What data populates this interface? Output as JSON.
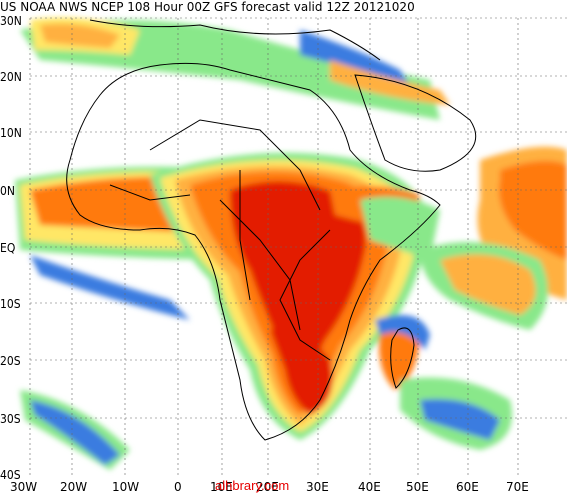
{
  "header": {
    "title": "US NOAA NWS NCEP 108 Hour 00Z GFS forecast valid 12Z 20121020"
  },
  "axes": {
    "lat_labels": [
      "30N",
      "20N",
      "10N",
      "0N",
      "EQ",
      "10S",
      "20S",
      "30S",
      "40S"
    ],
    "lon_labels": [
      "30W",
      "20W",
      "10W",
      "0",
      "10E",
      "20E",
      "30E",
      "40E",
      "50E",
      "60E",
      "70E"
    ]
  },
  "watermark": "alhbrary.com",
  "colors": {
    "land_outline": "#000000",
    "blue": "#3a7be0",
    "light_blue": "#8fd0ff",
    "green": "#89e88a",
    "yellow": "#ffe766",
    "light_orange": "#ffb040",
    "orange": "#ff7a10",
    "red": "#e31a00",
    "grid": "#666666"
  }
}
